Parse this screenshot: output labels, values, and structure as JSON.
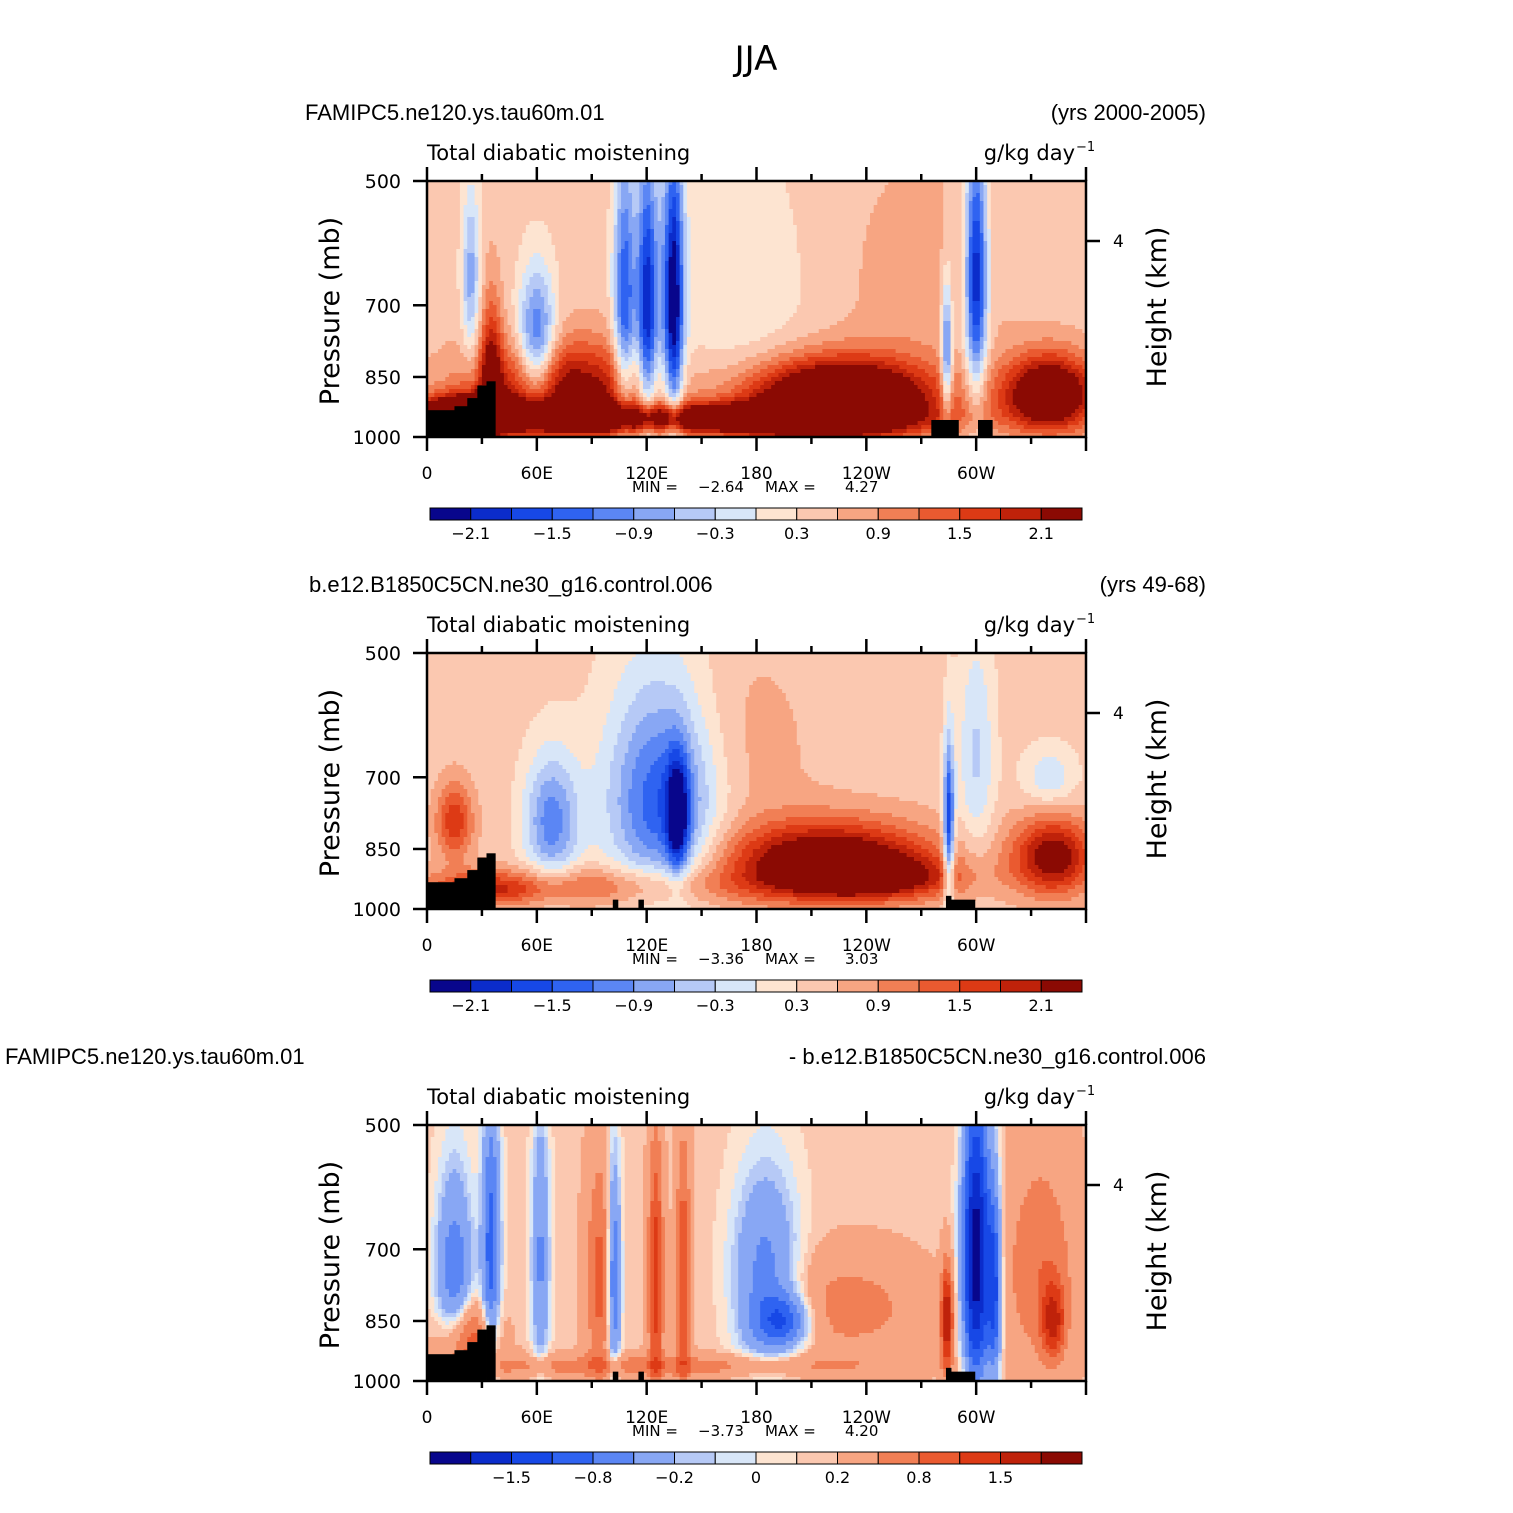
{
  "figure_title": "JJA",
  "colors": {
    "land_mask": "#000000",
    "frame": "#000000"
  },
  "chart_data": [
    {
      "type": "heatmap",
      "id": "p1",
      "left_title": "FAMIPC5.ne120.ys.tau60m.01",
      "right_title": "(yrs 2000-2005)",
      "variable": "Total diabatic moistening",
      "units": "g/kg day",
      "units_exp": "−1",
      "ylabel": "Pressure (mb)",
      "ylabel2": "Height (km)",
      "y_ticks": [
        "500",
        "700",
        "850",
        "1000"
      ],
      "y2_ticks": [
        "4"
      ],
      "x_ticks": [
        "0",
        "60E",
        "120E",
        "180",
        "120W",
        "60W"
      ],
      "xlim": [
        0,
        360
      ],
      "ylim": [
        1000,
        500
      ],
      "stats": {
        "min_label": "MIN =",
        "min": "−2.64",
        "max_label": "MAX =",
        "max": "4.27"
      },
      "colorbar": {
        "labels": [
          "−2.1",
          "−1.5",
          "−0.9",
          "−0.3",
          "0.3",
          "0.9",
          "1.5",
          "2.1"
        ],
        "colors": [
          "#08068c",
          "#0b2ccb",
          "#1748e6",
          "#2f63f1",
          "#5b86f4",
          "#88a7f4",
          "#b6c9f6",
          "#d8e6f8",
          "#fde4d1",
          "#fbc8b0",
          "#f7a582",
          "#f17f55",
          "#ea5a30",
          "#dd3a15",
          "#bf220a",
          "#8b0a03"
        ]
      },
      "features": [
        {
          "lon": 75,
          "p": 880,
          "w": 50,
          "h": 110,
          "v": 2.0
        },
        {
          "lon": 100,
          "p": 950,
          "w": 140,
          "h": 40,
          "v": 2.2
        },
        {
          "lon": 20,
          "p": 940,
          "w": 25,
          "h": 50,
          "v": 2.4
        },
        {
          "lon": 60,
          "p": 780,
          "w": 10,
          "h": 140,
          "v": -2.0
        },
        {
          "lon": 108,
          "p": 700,
          "w": 6,
          "h": 260,
          "v": -1.9
        },
        {
          "lon": 120,
          "p": 720,
          "w": 5,
          "h": 260,
          "v": -2.0
        },
        {
          "lon": 135,
          "p": 700,
          "w": 5,
          "h": 260,
          "v": -2.3
        },
        {
          "lon": 128,
          "p": 700,
          "w": 12,
          "h": 300,
          "v": -0.8
        },
        {
          "lon": 170,
          "p": 700,
          "w": 40,
          "h": 280,
          "v": -0.4
        },
        {
          "lon": 225,
          "p": 900,
          "w": 50,
          "h": 90,
          "v": 3.5
        },
        {
          "lon": 195,
          "p": 960,
          "w": 50,
          "h": 40,
          "v": 1.3
        },
        {
          "lon": 340,
          "p": 890,
          "w": 25,
          "h": 90,
          "v": 2.8
        },
        {
          "lon": 300,
          "p": 650,
          "w": 6,
          "h": 220,
          "v": -2.6
        },
        {
          "lon": 284,
          "p": 800,
          "w": 3,
          "h": 150,
          "v": -1.8
        },
        {
          "lon": 270,
          "p": 660,
          "w": 45,
          "h": 220,
          "v": 0.3
        },
        {
          "lon": 24,
          "p": 650,
          "w": 5,
          "h": 150,
          "v": -1.2
        },
        {
          "lon": 35,
          "p": 850,
          "w": 6,
          "h": 170,
          "v": 1.6
        }
      ],
      "land": [
        [
          10,
          930,
          20
        ],
        [
          20,
          920,
          10
        ],
        [
          25,
          900,
          6
        ],
        [
          30,
          870,
          5
        ],
        [
          35,
          860,
          5
        ],
        [
          283,
          955,
          15
        ],
        [
          305,
          955,
          8
        ]
      ]
    },
    {
      "type": "heatmap",
      "id": "p2",
      "left_title": "b.e12.B1850C5CN.ne30_g16.control.006",
      "right_title": "(yrs 49-68)",
      "variable": "Total diabatic moistening",
      "units": "g/kg day",
      "units_exp": "−1",
      "ylabel": "Pressure (mb)",
      "ylabel2": "Height (km)",
      "y_ticks": [
        "500",
        "700",
        "850",
        "1000"
      ],
      "y2_ticks": [
        "4"
      ],
      "x_ticks": [
        "0",
        "60E",
        "120E",
        "180",
        "120W",
        "60W"
      ],
      "xlim": [
        0,
        360
      ],
      "ylim": [
        1000,
        500
      ],
      "stats": {
        "min_label": "MIN =",
        "min": "−3.36",
        "max_label": "MAX =",
        "max": "3.03"
      },
      "colorbar": {
        "labels": [
          "−2.1",
          "−1.5",
          "−0.9",
          "−0.3",
          "0.3",
          "0.9",
          "1.5",
          "2.1"
        ],
        "colors": [
          "#08068c",
          "#0b2ccb",
          "#1748e6",
          "#2f63f1",
          "#5b86f4",
          "#88a7f4",
          "#b6c9f6",
          "#d8e6f8",
          "#fde4d1",
          "#fbc8b0",
          "#f7a582",
          "#f17f55",
          "#ea5a30",
          "#dd3a15",
          "#bf220a",
          "#8b0a03"
        ]
      },
      "features": [
        {
          "lon": 68,
          "p": 790,
          "w": 15,
          "h": 140,
          "v": -1.5
        },
        {
          "lon": 130,
          "p": 760,
          "w": 30,
          "h": 200,
          "v": -1.4
        },
        {
          "lon": 137,
          "p": 780,
          "w": 6,
          "h": 120,
          "v": -2.0
        },
        {
          "lon": 125,
          "p": 700,
          "w": 30,
          "h": 250,
          "v": -0.6
        },
        {
          "lon": 220,
          "p": 880,
          "w": 55,
          "h": 90,
          "v": 2.5
        },
        {
          "lon": 245,
          "p": 920,
          "w": 45,
          "h": 50,
          "v": 1.3
        },
        {
          "lon": 342,
          "p": 870,
          "w": 22,
          "h": 90,
          "v": 2.0
        },
        {
          "lon": 15,
          "p": 790,
          "w": 10,
          "h": 80,
          "v": 1.3
        },
        {
          "lon": 90,
          "p": 940,
          "w": 90,
          "h": 50,
          "v": 0.9
        },
        {
          "lon": 285,
          "p": 800,
          "w": 3,
          "h": 170,
          "v": -2.3
        },
        {
          "lon": 300,
          "p": 660,
          "w": 10,
          "h": 200,
          "v": -0.8
        },
        {
          "lon": 340,
          "p": 700,
          "w": 15,
          "h": 60,
          "v": -0.7
        },
        {
          "lon": 30,
          "p": 950,
          "w": 30,
          "h": 40,
          "v": 0.9
        },
        {
          "lon": 170,
          "p": 650,
          "w": 40,
          "h": 180,
          "v": 0.3
        }
      ],
      "land": [
        [
          10,
          930,
          20
        ],
        [
          20,
          920,
          10
        ],
        [
          25,
          900,
          6
        ],
        [
          30,
          870,
          5
        ],
        [
          35,
          860,
          5
        ],
        [
          103,
          975,
          3
        ],
        [
          117,
          975,
          3
        ],
        [
          292,
          975,
          15
        ],
        [
          285,
          965,
          3
        ]
      ]
    },
    {
      "type": "heatmap",
      "id": "p3",
      "left_title": "FAMIPC5.ne120.ys.tau60m.01",
      "right_title": "- b.e12.B1850C5CN.ne30_g16.control.006",
      "variable": "Total diabatic moistening",
      "units": "g/kg day",
      "units_exp": "−1",
      "ylabel": "Pressure (mb)",
      "ylabel2": "Height (km)",
      "y_ticks": [
        "500",
        "700",
        "850",
        "1000"
      ],
      "y2_ticks": [
        "4"
      ],
      "x_ticks": [
        "0",
        "60E",
        "120E",
        "180",
        "120W",
        "60W"
      ],
      "xlim": [
        0,
        360
      ],
      "ylim": [
        1000,
        500
      ],
      "stats": {
        "min_label": "MIN =",
        "min": "−3.73",
        "max_label": "MAX =",
        "max": "4.20"
      },
      "colorbar": {
        "labels": [
          "−1.5",
          "−0.8",
          "−0.2",
          "0",
          "0.2",
          "0.8",
          "1.5"
        ],
        "colors": [
          "#08068c",
          "#0b2ccb",
          "#1748e6",
          "#2f63f1",
          "#5b86f4",
          "#88a7f4",
          "#b6c9f6",
          "#d8e6f8",
          "#fde4d1",
          "#fbc8b0",
          "#f7a582",
          "#f17f55",
          "#ea5a30",
          "#dd3a15",
          "#bf220a",
          "#8b0a03"
        ]
      },
      "features": [
        {
          "lon": 15,
          "p": 760,
          "w": 10,
          "h": 200,
          "v": -0.9
        },
        {
          "lon": 35,
          "p": 700,
          "w": 5,
          "h": 250,
          "v": -1.1
        },
        {
          "lon": 62,
          "p": 720,
          "w": 5,
          "h": 250,
          "v": -0.7
        },
        {
          "lon": 95,
          "p": 760,
          "w": 8,
          "h": 220,
          "v": 0.8
        },
        {
          "lon": 102,
          "p": 760,
          "w": 4,
          "h": 220,
          "v": -1.2
        },
        {
          "lon": 125,
          "p": 760,
          "w": 4,
          "h": 240,
          "v": 1.2
        },
        {
          "lon": 140,
          "p": 760,
          "w": 4,
          "h": 240,
          "v": 1.0
        },
        {
          "lon": 185,
          "p": 760,
          "w": 18,
          "h": 200,
          "v": -0.8
        },
        {
          "lon": 195,
          "p": 850,
          "w": 15,
          "h": 60,
          "v": -1.0
        },
        {
          "lon": 230,
          "p": 820,
          "w": 40,
          "h": 110,
          "v": 0.5
        },
        {
          "lon": 300,
          "p": 720,
          "w": 7,
          "h": 260,
          "v": -2.4
        },
        {
          "lon": 310,
          "p": 780,
          "w": 4,
          "h": 200,
          "v": -1.3
        },
        {
          "lon": 284,
          "p": 850,
          "w": 3,
          "h": 110,
          "v": 1.8
        },
        {
          "lon": 342,
          "p": 850,
          "w": 6,
          "h": 80,
          "v": 1.3
        },
        {
          "lon": 335,
          "p": 740,
          "w": 20,
          "h": 220,
          "v": 0.6
        },
        {
          "lon": 120,
          "p": 960,
          "w": 140,
          "h": 30,
          "v": 0.5
        },
        {
          "lon": 22,
          "p": 900,
          "w": 15,
          "h": 90,
          "v": 1.0
        }
      ],
      "land": [
        [
          10,
          930,
          20
        ],
        [
          20,
          920,
          10
        ],
        [
          25,
          900,
          6
        ],
        [
          30,
          870,
          5
        ],
        [
          35,
          860,
          5
        ],
        [
          103,
          975,
          3
        ],
        [
          117,
          975,
          3
        ],
        [
          292,
          975,
          15
        ],
        [
          285,
          965,
          3
        ]
      ]
    }
  ]
}
